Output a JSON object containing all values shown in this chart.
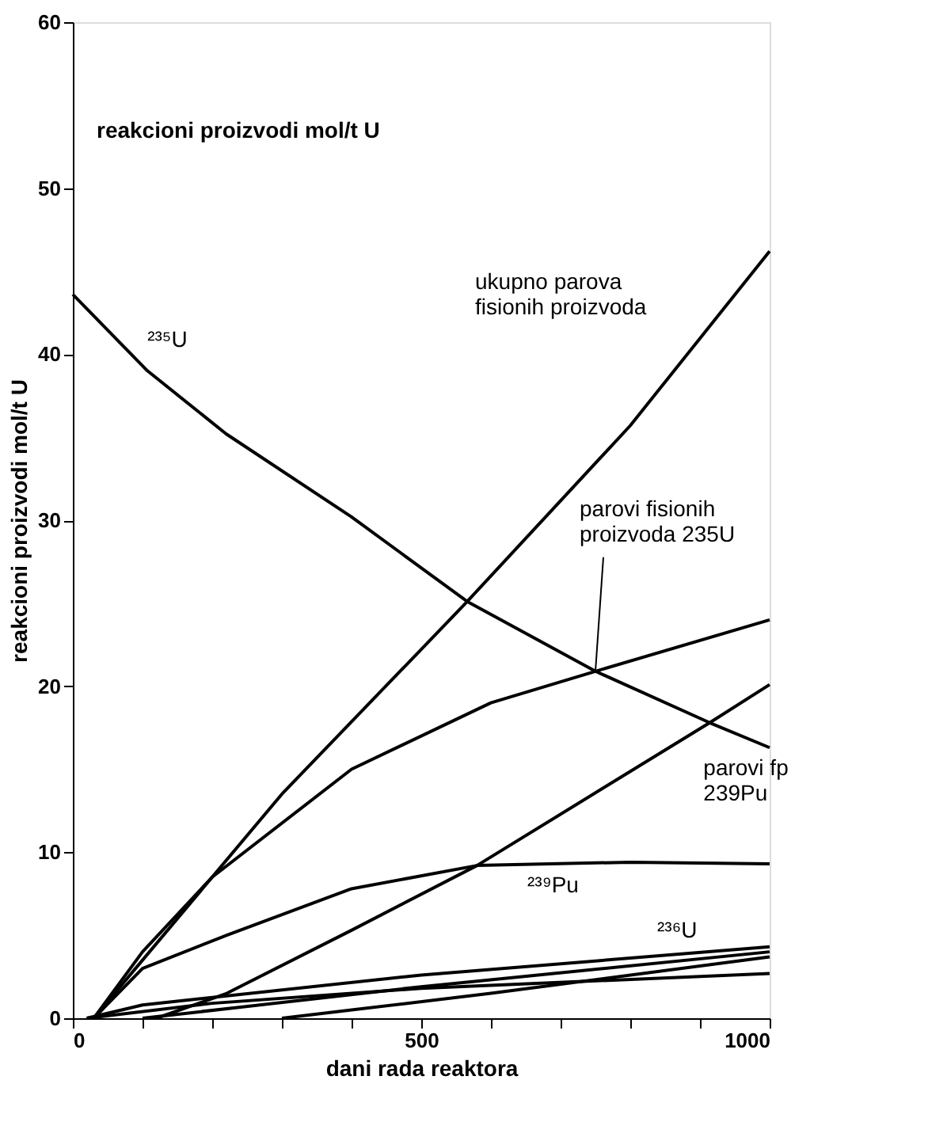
{
  "chart_data": {
    "type": "line",
    "xlabel": "dani rada reaktora",
    "ylabel": "reakcioni proizvodi mol/t U",
    "xlim": [
      0,
      1000
    ],
    "ylim": [
      0,
      60
    ],
    "xticks": [
      0,
      {
        "value": 100,
        "label": null
      },
      {
        "value": 200,
        "label": null
      },
      {
        "value": 300,
        "label": null
      },
      {
        "value": 400,
        "label": null
      },
      500,
      {
        "value": 600,
        "label": null
      },
      {
        "value": 700,
        "label": null
      },
      {
        "value": 800,
        "label": null
      },
      {
        "value": 900,
        "label": null
      },
      1000
    ],
    "yticks": [
      0,
      10,
      20,
      30,
      40,
      50,
      60
    ],
    "grid": false,
    "marker": "none",
    "line_style": "solid",
    "series": [
      {
        "name": "²³⁵U",
        "color": "#000000",
        "x": [
          0,
          107,
          220,
          400,
          566,
          750,
          914,
          1000
        ],
        "values": [
          43.6,
          39.0,
          35.2,
          30.2,
          25.1,
          20.9,
          17.8,
          16.3
        ]
      },
      {
        "name": "ukupno parova\nfisionih proizvoda",
        "color": "#000000",
        "x": [
          30,
          100,
          300,
          566,
          800,
          1000
        ],
        "values": [
          0,
          3.5,
          13.5,
          25.1,
          35.7,
          46.2
        ]
      },
      {
        "name": "parovi fisionih\nproizvoda 235U",
        "color": "#000000",
        "x": [
          30,
          100,
          200,
          400,
          600,
          750,
          1000
        ],
        "values": [
          0,
          4,
          8.5,
          15,
          19,
          20.9,
          24.0
        ]
      },
      {
        "name": "parovi fp\n239Pu",
        "color": "#000000",
        "x": [
          120,
          221,
          400,
          580,
          914,
          1000
        ],
        "values": [
          0,
          1.5,
          5.3,
          9.2,
          17.8,
          20.1
        ]
      },
      {
        "name": "²³⁹Pu",
        "color": "#000000",
        "x": [
          30,
          100,
          221,
          400,
          580,
          800,
          1000
        ],
        "values": [
          0,
          3,
          5,
          7.8,
          9.2,
          9.4,
          9.3
        ]
      },
      {
        "name": "²³⁶U",
        "color": "#000000",
        "x": [
          20,
          100,
          500,
          1000
        ],
        "values": [
          0,
          0.8,
          2.6,
          4.3
        ]
      },
      {
        "color": "#000000",
        "x": [
          20,
          200,
          500,
          1000
        ],
        "values": [
          0,
          0.9,
          1.8,
          2.7
        ]
      },
      {
        "color": "#000000",
        "x": [
          100,
          500,
          1000
        ],
        "values": [
          0,
          1.9,
          4.0
        ]
      },
      {
        "color": "#000000",
        "x": [
          300,
          600,
          1000
        ],
        "values": [
          0,
          1.5,
          3.7
        ]
      }
    ],
    "annotations": [
      "reakcioni proizvodi mol/t U"
    ]
  }
}
